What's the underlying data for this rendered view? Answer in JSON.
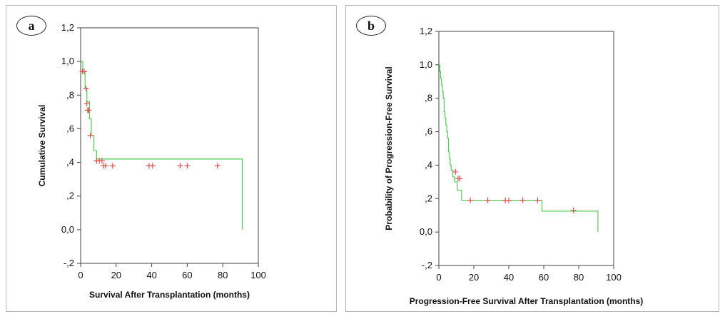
{
  "chart_data": [
    {
      "panel_label": "a",
      "type": "line",
      "step": true,
      "xlabel": "Survival After Transplantation (months)",
      "ylabel": "Cumulative Survival",
      "xlim": [
        0,
        100
      ],
      "ylim": [
        -0.2,
        1.2
      ],
      "xticks": [
        "0",
        "20",
        "40",
        "60",
        "80",
        "100"
      ],
      "xtick_values": [
        0,
        20,
        40,
        60,
        80,
        100
      ],
      "yticks": [
        "-,2",
        "0,0",
        ",2",
        ",4",
        ",6",
        ",8",
        "1,0",
        "1,2"
      ],
      "ytick_values": [
        -0.2,
        0,
        0.2,
        0.4,
        0.6,
        0.8,
        1.0,
        1.2
      ],
      "curve_color": "#55cc55",
      "censor_color": "#e05050",
      "grid": false,
      "series": [
        {
          "x": [
            0,
            1.2,
            2.5,
            3.5,
            5.0,
            6.0,
            7.5,
            9.0,
            91,
            91
          ],
          "y": [
            1.0,
            0.94,
            0.84,
            0.76,
            0.66,
            0.56,
            0.47,
            0.42,
            0.38,
            0.0
          ]
        }
      ],
      "censored": [
        {
          "x": 1.0,
          "y": 0.94
        },
        {
          "x": 2.0,
          "y": 0.94
        },
        {
          "x": 3.0,
          "y": 0.84
        },
        {
          "x": 3.5,
          "y": 0.75
        },
        {
          "x": 4.0,
          "y": 0.71
        },
        {
          "x": 4.5,
          "y": 0.71
        },
        {
          "x": 5.5,
          "y": 0.56
        },
        {
          "x": 9.0,
          "y": 0.41
        },
        {
          "x": 10.5,
          "y": 0.41
        },
        {
          "x": 12.0,
          "y": 0.41
        },
        {
          "x": 13.0,
          "y": 0.38
        },
        {
          "x": 14.0,
          "y": 0.38
        },
        {
          "x": 18.0,
          "y": 0.38
        },
        {
          "x": 38.5,
          "y": 0.38
        },
        {
          "x": 40.5,
          "y": 0.38
        },
        {
          "x": 56.0,
          "y": 0.38
        },
        {
          "x": 60.0,
          "y": 0.38
        },
        {
          "x": 77.0,
          "y": 0.38
        }
      ]
    },
    {
      "panel_label": "b",
      "type": "line",
      "step": true,
      "xlabel": "Progression-Free Survival After Transplantation (months)",
      "ylabel": "Probability of Progression-Free Survival",
      "xlim": [
        0,
        100
      ],
      "ylim": [
        -0.2,
        1.2
      ],
      "xticks": [
        "0",
        "20",
        "40",
        "60",
        "80",
        "100"
      ],
      "xtick_values": [
        0,
        20,
        40,
        60,
        80,
        100
      ],
      "yticks": [
        "-,2",
        "0,0",
        ",2",
        ",4",
        ",6",
        ",8",
        "1,0",
        "1,2"
      ],
      "ytick_values": [
        -0.2,
        0,
        0.2,
        0.4,
        0.6,
        0.8,
        1.0,
        1.2
      ],
      "curve_color": "#55cc55",
      "censor_color": "#e05050",
      "grid": false,
      "series": [
        {
          "x": [
            0,
            0.5,
            1.0,
            1.5,
            2.0,
            2.5,
            3.0,
            3.5,
            4.0,
            4.5,
            5.0,
            5.5,
            6.0,
            6.5,
            7.0,
            8.0,
            9.0,
            10.5,
            13.0,
            59.0,
            91,
            91
          ],
          "y": [
            1.0,
            0.96,
            0.92,
            0.88,
            0.84,
            0.8,
            0.72,
            0.68,
            0.64,
            0.6,
            0.56,
            0.48,
            0.44,
            0.4,
            0.37,
            0.33,
            0.3,
            0.25,
            0.19,
            0.125,
            0.125,
            0.0
          ]
        }
      ],
      "censored": [
        {
          "x": 9.5,
          "y": 0.36
        },
        {
          "x": 11.0,
          "y": 0.32
        },
        {
          "x": 12.0,
          "y": 0.32
        },
        {
          "x": 18.0,
          "y": 0.19
        },
        {
          "x": 28.0,
          "y": 0.19
        },
        {
          "x": 38.0,
          "y": 0.19
        },
        {
          "x": 40.0,
          "y": 0.19
        },
        {
          "x": 48.0,
          "y": 0.19
        },
        {
          "x": 56.5,
          "y": 0.19
        },
        {
          "x": 77.0,
          "y": 0.13
        }
      ]
    }
  ]
}
